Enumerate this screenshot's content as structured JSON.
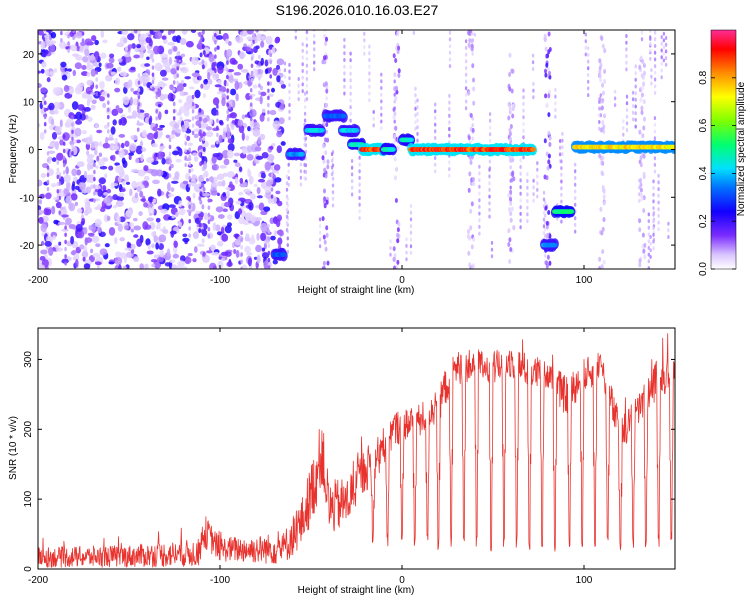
{
  "title": "S196.2026.010.16.03.E27",
  "chart_data": [
    {
      "type": "heatmap",
      "name": "spectrogram",
      "xlabel": "Height of straight line (km)",
      "ylabel": "Frequency (Hz)",
      "xlim": [
        -200,
        150
      ],
      "ylim": [
        -25,
        25
      ],
      "xticks": [
        -200,
        -100,
        0,
        100
      ],
      "xtick_labels": [
        "-200",
        "-100",
        "0",
        "100"
      ],
      "yticks": [
        -20,
        -10,
        0,
        10,
        20
      ],
      "ytick_labels": [
        "-20",
        "-10",
        "0",
        "10",
        "20"
      ],
      "colorbar": {
        "label": "Normalized spectral amplitude",
        "range": [
          0,
          1
        ],
        "ticks": [
          0,
          0.2,
          0.4,
          0.6,
          0.8
        ],
        "tick_labels": [
          "0.0",
          "0.2",
          "0.4",
          "0.6",
          "0.8"
        ],
        "colormap": [
          "#ffffff",
          "#9a66ff",
          "#5a00e0",
          "#0000ff",
          "#00c8ff",
          "#00ff80",
          "#7fff00",
          "#ffff00",
          "#ff8000",
          "#ff0000",
          "#ff3c8c"
        ]
      },
      "features": [
        {
          "type": "noise",
          "x_range": [
            -200,
            -65
          ],
          "y_range": [
            -25,
            25
          ],
          "density": "high",
          "amplitude": 0.2
        },
        {
          "type": "segment",
          "x_range": [
            -70,
            -65
          ],
          "frequency": -22,
          "amplitude": 0.35
        },
        {
          "type": "segment",
          "x_range": [
            -62,
            -55
          ],
          "frequency": -1,
          "amplitude": 0.4
        },
        {
          "type": "segment",
          "x_range": [
            -52,
            -44
          ],
          "frequency": 4,
          "amplitude": 0.45
        },
        {
          "type": "segment",
          "x_range": [
            -42,
            -32
          ],
          "frequency": 7,
          "amplitude": 0.35
        },
        {
          "type": "segment",
          "x_range": [
            -33,
            -25
          ],
          "frequency": 4,
          "amplitude": 0.45
        },
        {
          "type": "segment",
          "x_range": [
            -28,
            -22
          ],
          "frequency": 1,
          "amplitude": 0.5
        },
        {
          "type": "segment",
          "x_range": [
            -22,
            -10
          ],
          "frequency": 0,
          "amplitude": 0.95
        },
        {
          "type": "segment",
          "x_range": [
            -10,
            -5
          ],
          "frequency": 0,
          "amplitude": 0.5
        },
        {
          "type": "segment",
          "x_range": [
            0,
            5
          ],
          "frequency": 2,
          "amplitude": 0.5
        },
        {
          "type": "segment",
          "x_range": [
            5,
            72
          ],
          "frequency": 0,
          "amplitude": 0.95
        },
        {
          "type": "segment",
          "x_range": [
            78,
            84
          ],
          "frequency": -20,
          "amplitude": 0.4
        },
        {
          "type": "segment",
          "x_range": [
            84,
            93
          ],
          "frequency": -13,
          "amplitude": 0.55
        },
        {
          "type": "segment",
          "x_range": [
            95,
            150
          ],
          "frequency": 0.5,
          "amplitude": 0.8
        }
      ]
    },
    {
      "type": "line",
      "name": "snr",
      "xlabel": "Height of straight line (km)",
      "ylabel": "SNR (10 * v/v)",
      "xlim": [
        -200,
        150
      ],
      "ylim": [
        0,
        345
      ],
      "xticks": [
        -200,
        -100,
        0,
        100
      ],
      "xtick_labels": [
        "-200",
        "-100",
        "0",
        "100"
      ],
      "yticks": [
        0,
        100,
        200,
        300
      ],
      "ytick_labels": [
        "0",
        "100",
        "200",
        "300"
      ],
      "color": "#e8322d",
      "series": [
        {
          "name": "SNR",
          "x": [
            -200,
            -150,
            -112,
            -108,
            -100,
            -80,
            -65,
            -55,
            -48,
            -44,
            -40,
            -30,
            -22,
            -15,
            -10,
            -5,
            0,
            10,
            20,
            25,
            30,
            40,
            50,
            60,
            70,
            80,
            90,
            100,
            110,
            115,
            120,
            130,
            140,
            150
          ],
          "y": [
            18,
            20,
            25,
            55,
            30,
            30,
            32,
            70,
            130,
            175,
            90,
            100,
            140,
            160,
            180,
            200,
            210,
            215,
            240,
            270,
            290,
            295,
            290,
            300,
            285,
            280,
            250,
            280,
            290,
            240,
            195,
            230,
            275,
            285
          ],
          "noise_amplitude": [
            18,
            20,
            25,
            30,
            22,
            25,
            30,
            45,
            60,
            60,
            50,
            45,
            40,
            40,
            35,
            35,
            30,
            30,
            35,
            35,
            30,
            30,
            30,
            30,
            30,
            30,
            35,
            30,
            30,
            35,
            30,
            30,
            35,
            30
          ]
        }
      ],
      "dropouts": [
        {
          "x": -16,
          "y": 45
        },
        {
          "x": -8,
          "y": 40
        },
        {
          "x": 0,
          "y": 45
        },
        {
          "x": 7,
          "y": 40
        },
        {
          "x": 14,
          "y": 45
        },
        {
          "x": 20,
          "y": 35
        },
        {
          "x": 27,
          "y": 40
        },
        {
          "x": 34,
          "y": 40
        },
        {
          "x": 41,
          "y": 40
        },
        {
          "x": 49,
          "y": 35
        },
        {
          "x": 56,
          "y": 40
        },
        {
          "x": 63,
          "y": 40
        },
        {
          "x": 70,
          "y": 35
        },
        {
          "x": 77,
          "y": 40
        },
        {
          "x": 84,
          "y": 35
        },
        {
          "x": 92,
          "y": 40
        },
        {
          "x": 99,
          "y": 40
        },
        {
          "x": 106,
          "y": 35
        },
        {
          "x": 113,
          "y": 40
        },
        {
          "x": 120,
          "y": 35
        },
        {
          "x": 127,
          "y": 40
        },
        {
          "x": 134,
          "y": 35
        },
        {
          "x": 141,
          "y": 40
        },
        {
          "x": 148,
          "y": 45
        }
      ]
    }
  ]
}
